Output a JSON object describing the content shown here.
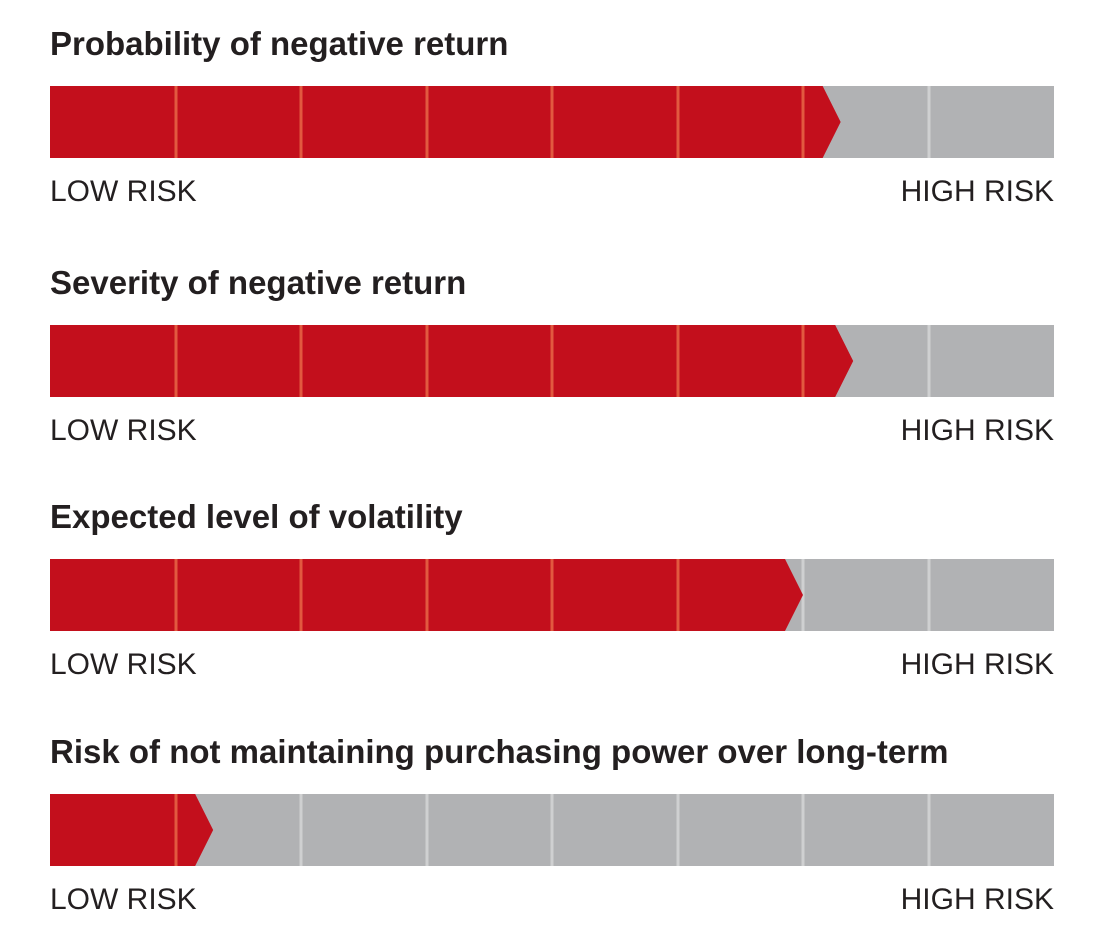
{
  "chart_data": {
    "type": "bar",
    "orientation": "horizontal",
    "segments": 8,
    "scale_min_label": "LOW RISK",
    "scale_max_label": "HIGH RISK",
    "colors": {
      "fill": "#c30f1c",
      "track": "#b1b2b4",
      "fill_divider": "#e2593f",
      "track_divider": "#cfd0d1"
    },
    "meters": [
      {
        "title": "Probability of negative return",
        "value": 6.3
      },
      {
        "title": "Severity of negative return",
        "value": 6.4
      },
      {
        "title": "Expected level of volatility",
        "value": 6.0
      },
      {
        "title": "Risk of not maintaining purchasing power over long-term",
        "value": 1.3
      }
    ]
  }
}
